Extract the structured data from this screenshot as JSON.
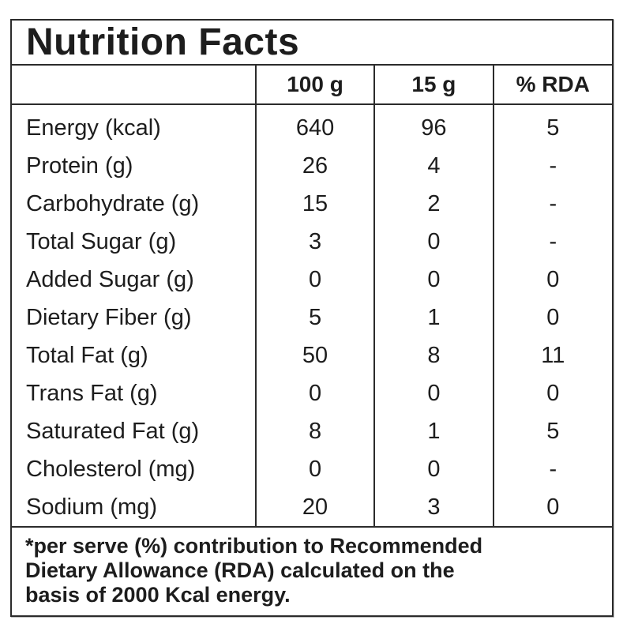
{
  "colors": {
    "background": "#ffffff",
    "text": "#1d1d1d",
    "border": "#2b2b2b"
  },
  "nutrition_label": {
    "title": "Nutrition Facts",
    "columns": [
      "",
      "100 g",
      "15 g",
      "% RDA"
    ],
    "rows": [
      {
        "label": "Energy (kcal)",
        "per_100g": "640",
        "per_15g": "96",
        "pct_rda": "5"
      },
      {
        "label": "Protein (g)",
        "per_100g": "26",
        "per_15g": "4",
        "pct_rda": "-"
      },
      {
        "label": "Carbohydrate (g)",
        "per_100g": "15",
        "per_15g": "2",
        "pct_rda": "-"
      },
      {
        "label": "Total Sugar (g)",
        "per_100g": "3",
        "per_15g": "0",
        "pct_rda": "-"
      },
      {
        "label": "Added Sugar (g)",
        "per_100g": "0",
        "per_15g": "0",
        "pct_rda": "0"
      },
      {
        "label": "Dietary Fiber (g)",
        "per_100g": "5",
        "per_15g": "1",
        "pct_rda": "0"
      },
      {
        "label": "Total Fat (g)",
        "per_100g": "50",
        "per_15g": "8",
        "pct_rda": "11"
      },
      {
        "label": "Trans Fat (g)",
        "per_100g": "0",
        "per_15g": "0",
        "pct_rda": "0"
      },
      {
        "label": "Saturated Fat (g)",
        "per_100g": "8",
        "per_15g": "1",
        "pct_rda": "5"
      },
      {
        "label": "Cholesterol (mg)",
        "per_100g": "0",
        "per_15g": "0",
        "pct_rda": "-"
      },
      {
        "label": "Sodium (mg)",
        "per_100g": "20",
        "per_15g": "3",
        "pct_rda": "0"
      }
    ],
    "footnote_lines": [
      "*per serve (%) contribution to Recommended",
      "Dietary Allowance (RDA) calculated on the",
      "basis of 2000 Kcal energy."
    ]
  }
}
